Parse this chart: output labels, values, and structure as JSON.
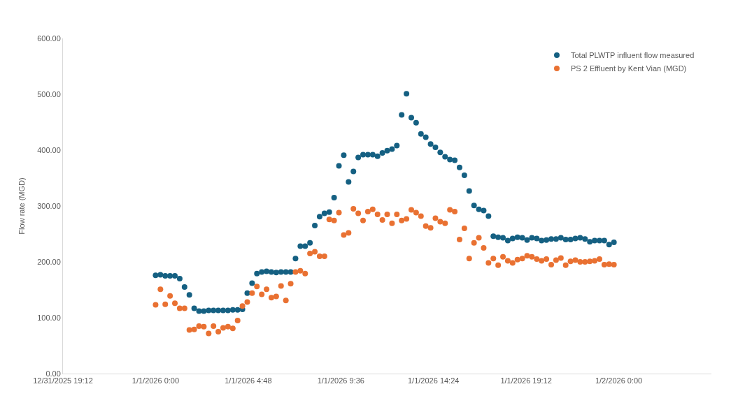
{
  "chart_data": {
    "type": "scatter",
    "ylabel": "Flow rate (MGD)",
    "marker": "circle",
    "legend": "top right",
    "grid": false,
    "x": [
      "2026-01-01T00:00",
      "2026-01-01T00:15",
      "2026-01-01T00:30",
      "2026-01-01T00:45",
      "2026-01-01T01:00",
      "2026-01-01T01:15",
      "2026-01-01T01:30",
      "2026-01-01T01:45",
      "2026-01-01T02:00",
      "2026-01-01T02:15",
      "2026-01-01T02:30",
      "2026-01-01T02:45",
      "2026-01-01T03:00",
      "2026-01-01T03:15",
      "2026-01-01T03:30",
      "2026-01-01T03:45",
      "2026-01-01T04:00",
      "2026-01-01T04:15",
      "2026-01-01T04:30",
      "2026-01-01T04:45",
      "2026-01-01T05:00",
      "2026-01-01T05:15",
      "2026-01-01T05:30",
      "2026-01-01T05:45",
      "2026-01-01T06:00",
      "2026-01-01T06:15",
      "2026-01-01T06:30",
      "2026-01-01T06:45",
      "2026-01-01T07:00",
      "2026-01-01T07:15",
      "2026-01-01T07:30",
      "2026-01-01T07:45",
      "2026-01-01T08:00",
      "2026-01-01T08:15",
      "2026-01-01T08:30",
      "2026-01-01T08:45",
      "2026-01-01T09:00",
      "2026-01-01T09:15",
      "2026-01-01T09:30",
      "2026-01-01T09:45",
      "2026-01-01T10:00",
      "2026-01-01T10:15",
      "2026-01-01T10:30",
      "2026-01-01T10:45",
      "2026-01-01T11:00",
      "2026-01-01T11:15",
      "2026-01-01T11:30",
      "2026-01-01T11:45",
      "2026-01-01T12:00",
      "2026-01-01T12:15",
      "2026-01-01T12:30",
      "2026-01-01T12:45",
      "2026-01-01T13:00",
      "2026-01-01T13:15",
      "2026-01-01T13:30",
      "2026-01-01T13:45",
      "2026-01-01T14:00",
      "2026-01-01T14:15",
      "2026-01-01T14:30",
      "2026-01-01T14:45",
      "2026-01-01T15:00",
      "2026-01-01T15:15",
      "2026-01-01T15:30",
      "2026-01-01T15:45",
      "2026-01-01T16:00",
      "2026-01-01T16:15",
      "2026-01-01T16:30",
      "2026-01-01T16:45",
      "2026-01-01T17:00",
      "2026-01-01T17:15",
      "2026-01-01T17:30",
      "2026-01-01T17:45",
      "2026-01-01T18:00",
      "2026-01-01T18:15",
      "2026-01-01T18:30",
      "2026-01-01T18:45",
      "2026-01-01T19:00",
      "2026-01-01T19:15",
      "2026-01-01T19:30",
      "2026-01-01T19:45",
      "2026-01-01T20:00",
      "2026-01-01T20:15",
      "2026-01-01T20:30",
      "2026-01-01T20:45",
      "2026-01-01T21:00",
      "2026-01-01T21:15",
      "2026-01-01T21:30",
      "2026-01-01T21:45",
      "2026-01-01T22:00",
      "2026-01-01T22:15",
      "2026-01-01T22:30",
      "2026-01-01T22:45",
      "2026-01-01T23:00",
      "2026-01-01T23:15",
      "2026-01-01T23:30",
      "2026-01-01T23:45"
    ],
    "series": [
      {
        "name": "Total PLWTP influent flow measured",
        "color": "#156082",
        "values": [
          176,
          177,
          175,
          175,
          175,
          170,
          155,
          141,
          117,
          112,
          112,
          113,
          113,
          113,
          113,
          113,
          114,
          114,
          115,
          144,
          162,
          179,
          182,
          183,
          182,
          181,
          182,
          182,
          182,
          206,
          228,
          228,
          234,
          265,
          281,
          287,
          289,
          315,
          372,
          391,
          343,
          362,
          387,
          392,
          392,
          392,
          389,
          395,
          399,
          402,
          408,
          463,
          501,
          458,
          449,
          429,
          423,
          411,
          405,
          396,
          388,
          383,
          382,
          369,
          355,
          327,
          301,
          294,
          292,
          282,
          246,
          244,
          243,
          238,
          242,
          244,
          243,
          239,
          243,
          242,
          238,
          239,
          241,
          241,
          243,
          240,
          240,
          242,
          243,
          241,
          236,
          238,
          238,
          238,
          231,
          235
        ]
      },
      {
        "name": "PS 2 Effluent by Kent Vian (MGD)",
        "color": "#e97132",
        "values": [
          123,
          151,
          124,
          139,
          126,
          117,
          117,
          78,
          79,
          85,
          84,
          72,
          85,
          75,
          82,
          84,
          81,
          95,
          121,
          128,
          144,
          156,
          142,
          151,
          136,
          138,
          157,
          131,
          161,
          182,
          184,
          179,
          215,
          218,
          210,
          210,
          276,
          274,
          288,
          248,
          252,
          295,
          287,
          274,
          290,
          294,
          285,
          275,
          285,
          269,
          285,
          274,
          277,
          293,
          288,
          282,
          264,
          261,
          278,
          272,
          269,
          293,
          290,
          240,
          260,
          206,
          234,
          243,
          225,
          198,
          206,
          194,
          209,
          202,
          198,
          204,
          206,
          211,
          209,
          205,
          202,
          205,
          195,
          203,
          207,
          194,
          201,
          203,
          200,
          200,
          201,
          202,
          205,
          195,
          196,
          195
        ]
      }
    ],
    "xlim": [
      "2025-12-31T19:12",
      "2026-01-02T04:48"
    ],
    "xticks": [
      {
        "value": "2025-12-31T19:12",
        "label": "12/31/2025 19:12"
      },
      {
        "value": "2026-01-01T00:00",
        "label": "1/1/2026 0:00"
      },
      {
        "value": "2026-01-01T04:48",
        "label": "1/1/2026 4:48"
      },
      {
        "value": "2026-01-01T09:36",
        "label": "1/1/2026 9:36"
      },
      {
        "value": "2026-01-01T14:24",
        "label": "1/1/2026 14:24"
      },
      {
        "value": "2026-01-01T19:12",
        "label": "1/1/2026 19:12"
      },
      {
        "value": "2026-01-02T00:00",
        "label": "1/2/2026 0:00"
      }
    ],
    "ylim": [
      0,
      600
    ],
    "yticks": [
      {
        "value": 0,
        "label": "0.00"
      },
      {
        "value": 100,
        "label": "100.00"
      },
      {
        "value": 200,
        "label": "200.00"
      },
      {
        "value": 300,
        "label": "300.00"
      },
      {
        "value": 400,
        "label": "400.00"
      },
      {
        "value": 500,
        "label": "500.00"
      },
      {
        "value": 600,
        "label": "600.00"
      }
    ]
  }
}
